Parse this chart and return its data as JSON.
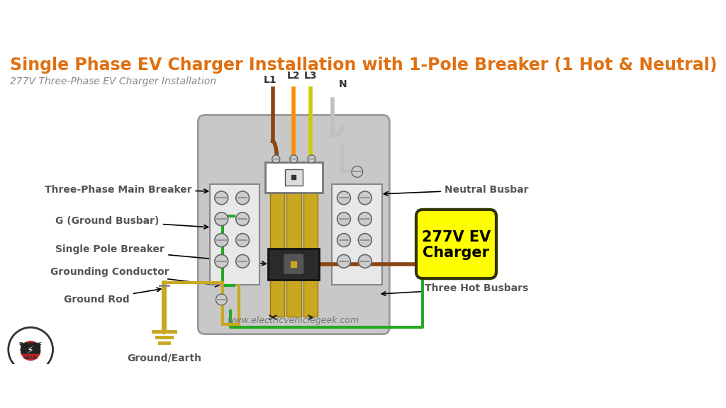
{
  "title": "Single Phase EV Charger Installation with 1-Pole Breaker (1 Hot & Neutral)",
  "subtitle": "277V Three-Phase EV Charger Installation",
  "title_color": "#E07010",
  "subtitle_color": "#888888",
  "bg_color": "#ffffff",
  "panel_color": "#C8C8C8",
  "busbar_color": "#C8A820",
  "wire_L1_color": "#8B4513",
  "wire_L2_color": "#FF8C00",
  "wire_L3_color": "#CCCC00",
  "wire_N_color": "#C0C0C0",
  "wire_green_color": "#22AA22",
  "wire_hot_out_color": "#8B4513",
  "ground_rod_color": "#C8A820",
  "ev_box_color": "#FFFF00",
  "ev_text_color": "#000000",
  "label_color": "#555555",
  "watermark": "www.electricvehiclegeek.com"
}
